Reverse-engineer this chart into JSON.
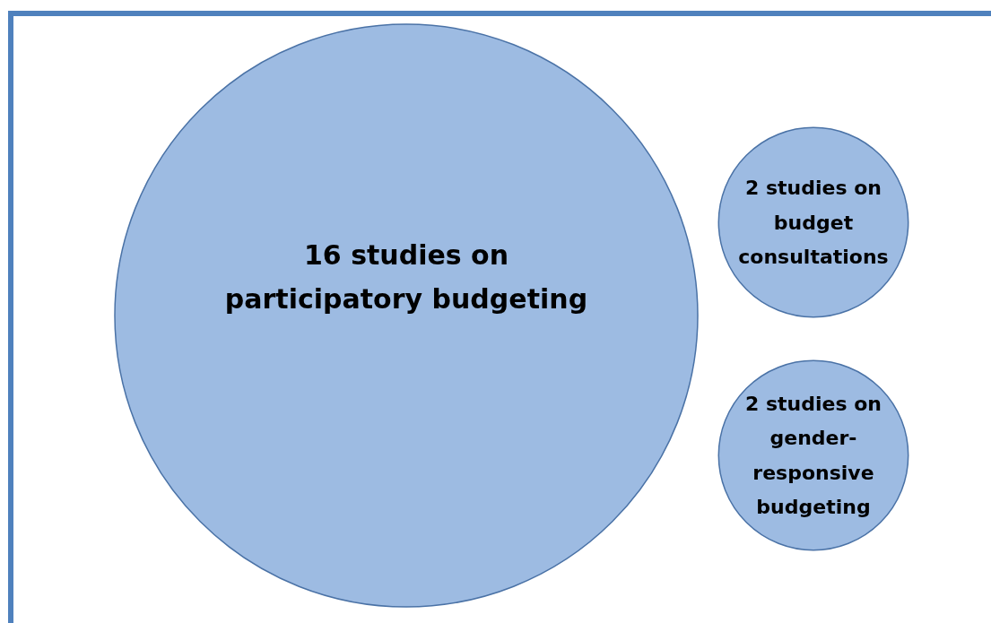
{
  "chart_data": {
    "type": "other",
    "categories": [
      "studies on participatory budgeting",
      "studies on budget consultations",
      "studies on gender-responsive budgeting"
    ],
    "values": [
      16,
      2,
      2
    ],
    "data_labels": true,
    "color": "#9dbbe2"
  }
}
